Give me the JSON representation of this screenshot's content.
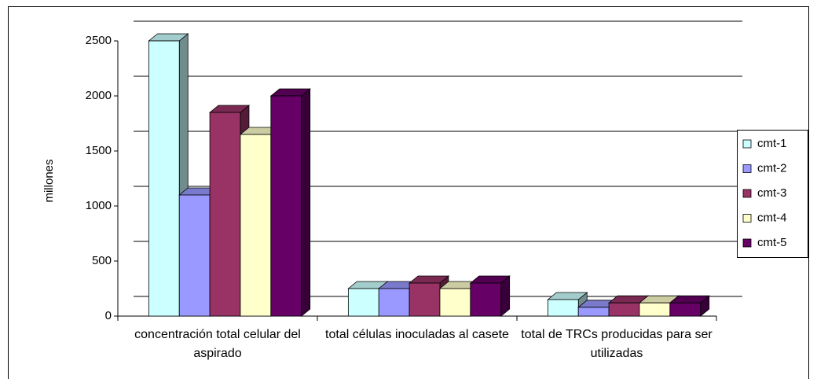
{
  "chart_data": {
    "type": "bar3d",
    "y_label": "millones",
    "categories": [
      "concentración total celular del aspirado",
      "total células inoculadas al casete",
      "total de TRCs producidas para ser utilizadas"
    ],
    "series": [
      {
        "name": "cmt-1",
        "color": "#ccffff",
        "values": [
          2500,
          250,
          150
        ]
      },
      {
        "name": "cmt-2",
        "color": "#9999ff",
        "values": [
          1100,
          250,
          80
        ]
      },
      {
        "name": "cmt-3",
        "color": "#993366",
        "values": [
          1850,
          300,
          120
        ]
      },
      {
        "name": "cmt-4",
        "color": "#ffffcc",
        "values": [
          1650,
          250,
          120
        ]
      },
      {
        "name": "cmt-5",
        "color": "#660066",
        "values": [
          2000,
          300,
          120
        ]
      }
    ],
    "ylim": [
      0,
      2500
    ],
    "yticks": [
      0,
      500,
      1000,
      1500,
      2000,
      2500
    ],
    "grid": true,
    "legend": "right"
  }
}
